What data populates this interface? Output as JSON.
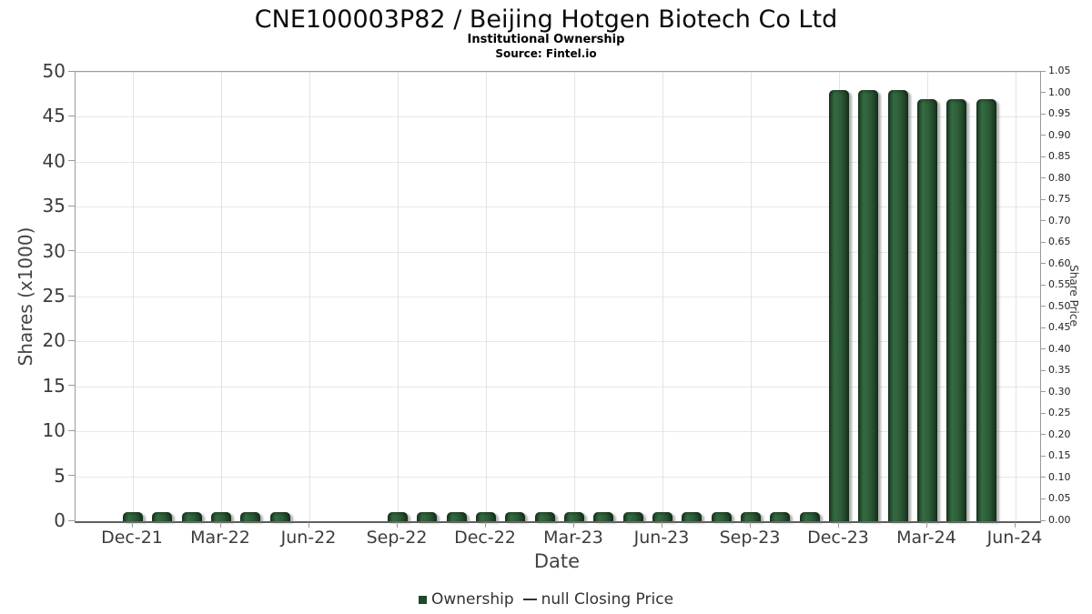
{
  "header": {
    "title": "CNE100003P82 / Beijing Hotgen Biotech Co Ltd",
    "subtitle": "Institutional Ownership",
    "source": "Source: Fintel.io"
  },
  "chart_data": {
    "type": "bar",
    "title": "CNE100003P82 / Beijing Hotgen Biotech Co Ltd",
    "subtitle": "Institutional Ownership",
    "source": "Source: Fintel.io",
    "xlabel": "Date",
    "ylabel_left": "Shares (x1000)",
    "ylabel_right": "Share Price",
    "grid": true,
    "legend_position": "bottom-center",
    "y_left": {
      "min": 0,
      "max": 50,
      "step": 5,
      "ticks": [
        "0",
        "5",
        "10",
        "15",
        "20",
        "25",
        "30",
        "35",
        "40",
        "45",
        "50"
      ]
    },
    "y_right": {
      "min": 0,
      "max": 1.05,
      "step": 0.05,
      "ticks": [
        "0.00",
        "0.05",
        "0.10",
        "0.15",
        "0.20",
        "0.25",
        "0.30",
        "0.35",
        "0.40",
        "0.45",
        "0.50",
        "0.55",
        "0.60",
        "0.65",
        "0.70",
        "0.75",
        "0.80",
        "0.85",
        "0.90",
        "0.95",
        "1.00",
        "1.05"
      ]
    },
    "x_ticks": [
      "Dec-21",
      "Mar-22",
      "Jun-22",
      "Sep-22",
      "Dec-22",
      "Mar-23",
      "Jun-23",
      "Sep-23",
      "Dec-23",
      "Mar-24",
      "Jun-24"
    ],
    "series": [
      {
        "name": "Ownership",
        "type": "bar",
        "color": "#2e5f3b",
        "months": [
          "Dec-21",
          "Jan-22",
          "Feb-22",
          "Mar-22",
          "Apr-22",
          "May-22",
          "Jun-22",
          "Jul-22",
          "Aug-22",
          "Sep-22",
          "Oct-22",
          "Nov-22",
          "Dec-22",
          "Jan-23",
          "Feb-23",
          "Mar-23",
          "Apr-23",
          "May-23",
          "Jun-23",
          "Jul-23",
          "Aug-23",
          "Sep-23",
          "Oct-23",
          "Nov-23",
          "Dec-23",
          "Jan-24",
          "Feb-24",
          "Mar-24",
          "Apr-24",
          "May-24"
        ],
        "values": [
          1,
          1,
          1,
          1,
          1,
          1,
          null,
          null,
          null,
          1,
          1,
          1,
          1,
          1,
          1,
          1,
          1,
          1,
          1,
          1,
          1,
          1,
          1,
          1,
          48,
          48,
          48,
          47,
          47,
          47
        ]
      },
      {
        "name": "null Closing Price",
        "type": "line",
        "color": "#333333",
        "values": []
      }
    ]
  },
  "legend": {
    "ownership_label": "Ownership",
    "separator": "—",
    "price_label": "null Closing Price"
  },
  "colors": {
    "bar": "#2e5f3b",
    "bar_edge": "#17371f",
    "legend_square": "#1e4a29",
    "grid": "#e6e6e6",
    "axis": "#9a9a9a",
    "text": "#3c3c3c"
  }
}
